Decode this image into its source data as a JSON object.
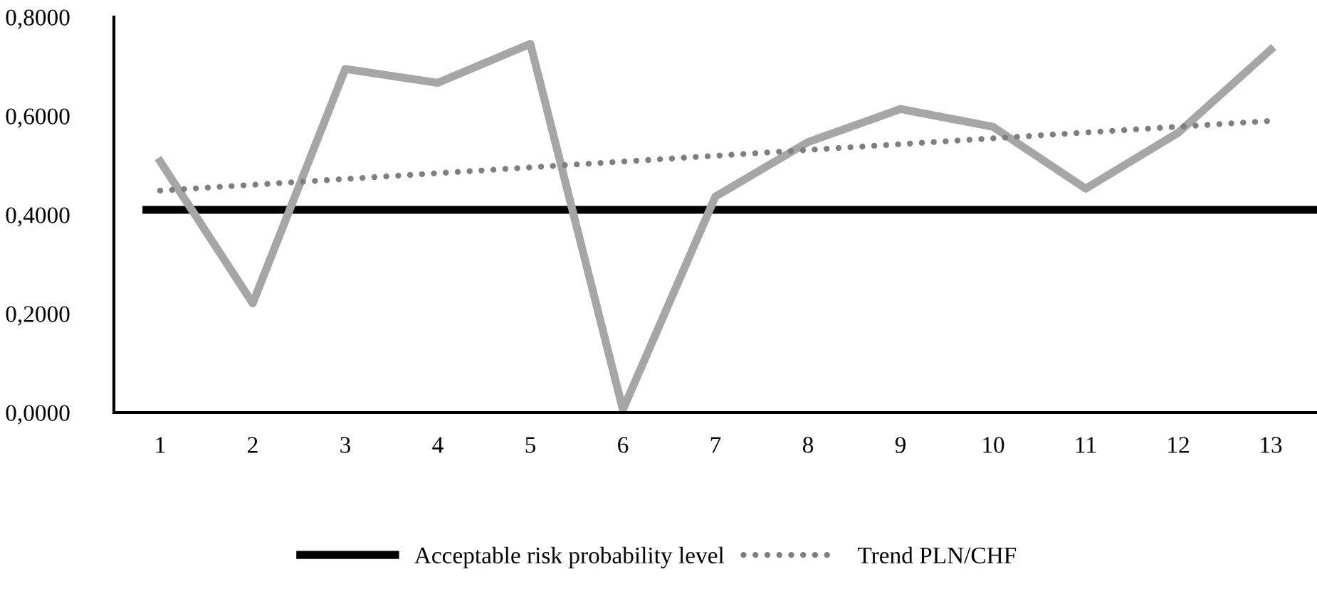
{
  "chart_data": {
    "type": "line",
    "categories": [
      "1",
      "2",
      "3",
      "4",
      "5",
      "6",
      "7",
      "8",
      "9",
      "10",
      "11",
      "12",
      "13"
    ],
    "series": [
      {
        "color": "#a6a6a6",
        "values": [
          0.508,
          0.221,
          0.695,
          0.667,
          0.746,
          0.006,
          0.437,
          0.547,
          0.614,
          0.578,
          0.453,
          0.566,
          0.734
        ]
      },
      {
        "name": "Trend PLN/CHF",
        "type": "line",
        "color": "#7f7f7f",
        "line_style": "dotted",
        "x": [
          "1",
          "13"
        ],
        "values": [
          0.449,
          0.59
        ]
      }
    ],
    "ref_lines": [
      {
        "axis": "y",
        "value": 0.41,
        "label": "Acceptable risk probability level",
        "color": "#000000",
        "line_style": "solid"
      }
    ],
    "ylim": [
      0,
      0.8
    ],
    "yticks": [
      {
        "value": 0,
        "label": "0,0000"
      },
      {
        "value": 0.2,
        "label": "0,2000"
      },
      {
        "value": 0.4,
        "label": "0,4000"
      },
      {
        "value": 0.6,
        "label": "0,6000"
      },
      {
        "value": 0.8,
        "label": "0,8000"
      }
    ],
    "grid": false,
    "legend": "bottom",
    "marker": "none",
    "line_style": "solid"
  }
}
